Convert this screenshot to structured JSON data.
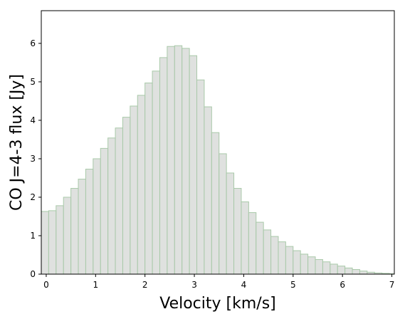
{
  "chart_data": {
    "type": "bar",
    "title": "",
    "xlabel": "Velocity [km/s]",
    "ylabel": "CO J=4-3 flux [Jy]",
    "xlim": [
      -0.1,
      7.05
    ],
    "ylim": [
      0,
      6.85
    ],
    "grid": false,
    "bin_width": 0.15,
    "bin_start": -0.1,
    "x_ticks": [
      {
        "value": 0,
        "label": "0"
      },
      {
        "value": 1,
        "label": "1"
      },
      {
        "value": 2,
        "label": "2"
      },
      {
        "value": 3,
        "label": "3"
      },
      {
        "value": 4,
        "label": "4"
      },
      {
        "value": 5,
        "label": "5"
      },
      {
        "value": 6,
        "label": "6"
      },
      {
        "value": 7,
        "label": "7"
      }
    ],
    "y_ticks": [
      {
        "value": 0,
        "label": "0"
      },
      {
        "value": 1,
        "label": "1"
      },
      {
        "value": 2,
        "label": "2"
      },
      {
        "value": 3,
        "label": "3"
      },
      {
        "value": 4,
        "label": "4"
      },
      {
        "value": 5,
        "label": "5"
      },
      {
        "value": 6,
        "label": "6"
      }
    ],
    "values": [
      1.63,
      1.65,
      1.78,
      2.0,
      2.23,
      2.47,
      2.73,
      3.0,
      3.27,
      3.54,
      3.8,
      4.08,
      4.37,
      4.65,
      4.97,
      5.28,
      5.63,
      5.92,
      5.94,
      5.87,
      5.68,
      5.05,
      4.35,
      3.68,
      3.13,
      2.63,
      2.23,
      1.88,
      1.6,
      1.35,
      1.15,
      0.98,
      0.84,
      0.72,
      0.61,
      0.52,
      0.45,
      0.38,
      0.32,
      0.26,
      0.21,
      0.16,
      0.12,
      0.08,
      0.05,
      0.03,
      0.02,
      0.01
    ],
    "colors": {
      "bar_fill": "#d9dcd9",
      "bar_edge": "#a9c9a9",
      "axis": "#000000"
    }
  }
}
